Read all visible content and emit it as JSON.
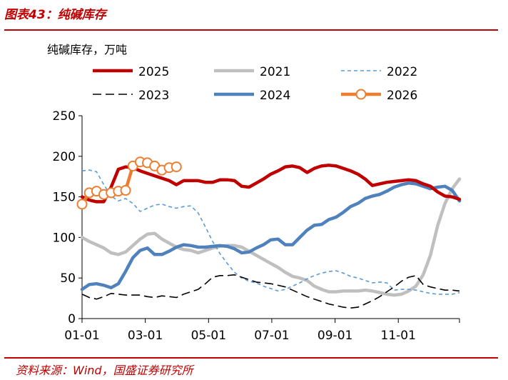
{
  "figure": {
    "title": "图表43：纯碱库存",
    "source": "资料来源：Wind，国盛证券研究所"
  },
  "chart_data": {
    "type": "line",
    "ylabel": "纯碱库存，万吨",
    "ylim": [
      0,
      250
    ],
    "yticks": [
      "0",
      "50",
      "100",
      "150",
      "200",
      "250"
    ],
    "xticks": [
      "01-01",
      "03-01",
      "05-01",
      "07-01",
      "09-01",
      "11-01"
    ],
    "x_unit": "week of year (0 = 01-01, 52 = year end)",
    "legend": [
      {
        "name": "2025",
        "color": "#c00000",
        "style": "solid-thick"
      },
      {
        "name": "2021",
        "color": "#bfbfbf",
        "style": "solid-thick"
      },
      {
        "name": "2022",
        "color": "#5b9bd5",
        "style": "dashed"
      },
      {
        "name": "2023",
        "color": "#000000",
        "style": "long-dash"
      },
      {
        "name": "2024",
        "color": "#4f81bd",
        "style": "solid-thick"
      },
      {
        "name": "2026",
        "color": "#ed7d31",
        "style": "solid-markers"
      }
    ],
    "series": [
      {
        "name": "2021",
        "color": "#bfbfbf",
        "style": "gray",
        "points": [
          [
            0,
            100
          ],
          [
            1,
            95
          ],
          [
            2,
            91
          ],
          [
            3,
            87
          ],
          [
            4,
            81
          ],
          [
            5,
            79
          ],
          [
            6,
            82
          ],
          [
            7,
            90
          ],
          [
            8,
            98
          ],
          [
            9,
            104
          ],
          [
            10,
            105
          ],
          [
            11,
            98
          ],
          [
            12,
            93
          ],
          [
            13,
            88
          ],
          [
            14,
            85
          ],
          [
            15,
            84
          ],
          [
            16,
            81
          ],
          [
            17,
            84
          ],
          [
            18,
            87
          ],
          [
            19,
            89
          ],
          [
            20,
            90
          ],
          [
            21,
            90
          ],
          [
            22,
            88
          ],
          [
            23,
            83
          ],
          [
            24,
            78
          ],
          [
            25,
            73
          ],
          [
            26,
            68
          ],
          [
            27,
            63
          ],
          [
            28,
            57
          ],
          [
            29,
            52
          ],
          [
            30,
            50
          ],
          [
            31,
            47
          ],
          [
            32,
            40
          ],
          [
            33,
            36
          ],
          [
            34,
            33
          ],
          [
            35,
            33
          ],
          [
            36,
            34
          ],
          [
            37,
            34
          ],
          [
            38,
            34
          ],
          [
            39,
            35
          ],
          [
            40,
            34
          ],
          [
            41,
            32
          ],
          [
            42,
            30
          ],
          [
            43,
            29
          ],
          [
            44,
            30
          ],
          [
            45,
            34
          ],
          [
            46,
            40
          ],
          [
            47,
            54
          ],
          [
            48,
            78
          ],
          [
            49,
            115
          ],
          [
            50,
            142
          ],
          [
            51,
            160
          ],
          [
            52,
            172
          ]
        ]
      },
      {
        "name": "2022",
        "color": "#5b9bd5",
        "style": "dash",
        "points": [
          [
            0,
            182
          ],
          [
            1,
            183
          ],
          [
            2,
            181
          ],
          [
            3,
            165
          ],
          [
            4,
            151
          ],
          [
            5,
            145
          ],
          [
            6,
            148
          ],
          [
            7,
            142
          ],
          [
            8,
            132
          ],
          [
            9,
            136
          ],
          [
            10,
            140
          ],
          [
            11,
            141
          ],
          [
            12,
            138
          ],
          [
            13,
            136
          ],
          [
            14,
            138
          ],
          [
            15,
            139
          ],
          [
            16,
            130
          ],
          [
            17,
            113
          ],
          [
            18,
            95
          ],
          [
            19,
            80
          ],
          [
            20,
            68
          ],
          [
            21,
            57
          ],
          [
            22,
            50
          ],
          [
            23,
            46
          ],
          [
            24,
            44
          ],
          [
            25,
            40
          ],
          [
            26,
            37
          ],
          [
            27,
            34
          ],
          [
            28,
            36
          ],
          [
            29,
            40
          ],
          [
            30,
            44
          ],
          [
            31,
            49
          ],
          [
            32,
            53
          ],
          [
            33,
            56
          ],
          [
            34,
            58
          ],
          [
            35,
            59
          ],
          [
            36,
            56
          ],
          [
            37,
            52
          ],
          [
            38,
            50
          ],
          [
            39,
            47
          ],
          [
            40,
            44
          ],
          [
            41,
            45
          ],
          [
            42,
            44
          ],
          [
            43,
            35
          ],
          [
            44,
            36
          ],
          [
            45,
            36
          ],
          [
            46,
            35
          ],
          [
            47,
            33
          ],
          [
            48,
            31
          ],
          [
            49,
            30
          ],
          [
            50,
            30
          ],
          [
            51,
            30
          ],
          [
            52,
            32
          ]
        ]
      },
      {
        "name": "2023",
        "color": "#000000",
        "style": "longdash",
        "points": [
          [
            0,
            30
          ],
          [
            1,
            26
          ],
          [
            2,
            24
          ],
          [
            3,
            27
          ],
          [
            4,
            31
          ],
          [
            5,
            30
          ],
          [
            6,
            29
          ],
          [
            7,
            29
          ],
          [
            8,
            29
          ],
          [
            9,
            27
          ],
          [
            10,
            26
          ],
          [
            11,
            28
          ],
          [
            12,
            27
          ],
          [
            13,
            26
          ],
          [
            14,
            30
          ],
          [
            15,
            33
          ],
          [
            16,
            36
          ],
          [
            17,
            43
          ],
          [
            18,
            51
          ],
          [
            19,
            53
          ],
          [
            20,
            53
          ],
          [
            21,
            54
          ],
          [
            22,
            51
          ],
          [
            23,
            48
          ],
          [
            24,
            45
          ],
          [
            25,
            44
          ],
          [
            26,
            43
          ],
          [
            27,
            41
          ],
          [
            28,
            39
          ],
          [
            29,
            35
          ],
          [
            30,
            31
          ],
          [
            31,
            27
          ],
          [
            32,
            24
          ],
          [
            33,
            21
          ],
          [
            34,
            18
          ],
          [
            35,
            16
          ],
          [
            36,
            14
          ],
          [
            37,
            13
          ],
          [
            38,
            14
          ],
          [
            39,
            18
          ],
          [
            40,
            22
          ],
          [
            41,
            27
          ],
          [
            42,
            33
          ],
          [
            43,
            39
          ],
          [
            44,
            46
          ],
          [
            45,
            51
          ],
          [
            46,
            53
          ],
          [
            47,
            42
          ],
          [
            48,
            39
          ],
          [
            49,
            37
          ],
          [
            50,
            35
          ],
          [
            51,
            35
          ],
          [
            52,
            34
          ]
        ]
      },
      {
        "name": "2024",
        "color": "#4f81bd",
        "style": "blue",
        "points": [
          [
            0,
            36
          ],
          [
            1,
            42
          ],
          [
            2,
            43
          ],
          [
            3,
            41
          ],
          [
            4,
            38
          ],
          [
            5,
            43
          ],
          [
            6,
            58
          ],
          [
            7,
            75
          ],
          [
            8,
            84
          ],
          [
            9,
            87
          ],
          [
            10,
            79
          ],
          [
            11,
            79
          ],
          [
            12,
            83
          ],
          [
            13,
            88
          ],
          [
            14,
            91
          ],
          [
            15,
            90
          ],
          [
            16,
            88
          ],
          [
            17,
            88
          ],
          [
            18,
            89
          ],
          [
            19,
            90
          ],
          [
            20,
            89
          ],
          [
            21,
            86
          ],
          [
            22,
            81
          ],
          [
            23,
            82
          ],
          [
            24,
            87
          ],
          [
            25,
            91
          ],
          [
            26,
            97
          ],
          [
            27,
            98
          ],
          [
            28,
            91
          ],
          [
            29,
            91
          ],
          [
            30,
            100
          ],
          [
            31,
            109
          ],
          [
            32,
            115
          ],
          [
            33,
            116
          ],
          [
            34,
            122
          ],
          [
            35,
            125
          ],
          [
            36,
            131
          ],
          [
            37,
            138
          ],
          [
            38,
            142
          ],
          [
            39,
            148
          ],
          [
            40,
            151
          ],
          [
            41,
            153
          ],
          [
            42,
            157
          ],
          [
            43,
            162
          ],
          [
            44,
            165
          ],
          [
            45,
            167
          ],
          [
            46,
            166
          ],
          [
            47,
            163
          ],
          [
            48,
            160
          ],
          [
            49,
            162
          ],
          [
            50,
            163
          ],
          [
            51,
            158
          ],
          [
            52,
            145
          ]
        ]
      },
      {
        "name": "2025",
        "color": "#c00000",
        "style": "red",
        "points": [
          [
            0,
            150
          ],
          [
            1,
            146
          ],
          [
            2,
            144
          ],
          [
            3,
            144
          ],
          [
            4,
            162
          ],
          [
            5,
            184
          ],
          [
            6,
            187
          ],
          [
            7,
            186
          ],
          [
            8,
            182
          ],
          [
            9,
            179
          ],
          [
            10,
            176
          ],
          [
            11,
            173
          ],
          [
            12,
            170
          ],
          [
            13,
            165
          ],
          [
            14,
            170
          ],
          [
            15,
            170
          ],
          [
            16,
            170
          ],
          [
            17,
            168
          ],
          [
            18,
            168
          ],
          [
            19,
            171
          ],
          [
            20,
            171
          ],
          [
            21,
            170
          ],
          [
            22,
            163
          ],
          [
            23,
            162
          ],
          [
            24,
            167
          ],
          [
            25,
            172
          ],
          [
            26,
            178
          ],
          [
            27,
            182
          ],
          [
            28,
            187
          ],
          [
            29,
            188
          ],
          [
            30,
            186
          ],
          [
            31,
            180
          ],
          [
            32,
            185
          ],
          [
            33,
            188
          ],
          [
            34,
            189
          ],
          [
            35,
            188
          ],
          [
            36,
            185
          ],
          [
            37,
            182
          ],
          [
            38,
            178
          ],
          [
            39,
            172
          ],
          [
            40,
            164
          ],
          [
            41,
            166
          ],
          [
            42,
            168
          ],
          [
            43,
            169
          ],
          [
            44,
            170
          ],
          [
            45,
            171
          ],
          [
            46,
            170
          ],
          [
            47,
            166
          ],
          [
            48,
            163
          ],
          [
            49,
            156
          ],
          [
            50,
            151
          ],
          [
            51,
            150
          ],
          [
            52,
            147
          ]
        ]
      },
      {
        "name": "2026",
        "color": "#ed7d31",
        "style": "markers",
        "points": [
          [
            0,
            141
          ],
          [
            1,
            155
          ],
          [
            2,
            157
          ],
          [
            3,
            153
          ],
          [
            4,
            155
          ],
          [
            5,
            157
          ],
          [
            6,
            158
          ],
          [
            7,
            188
          ],
          [
            8,
            193
          ],
          [
            9,
            192
          ],
          [
            10,
            188
          ],
          [
            11,
            183
          ],
          [
            12,
            186
          ],
          [
            13,
            187
          ]
        ]
      }
    ]
  }
}
